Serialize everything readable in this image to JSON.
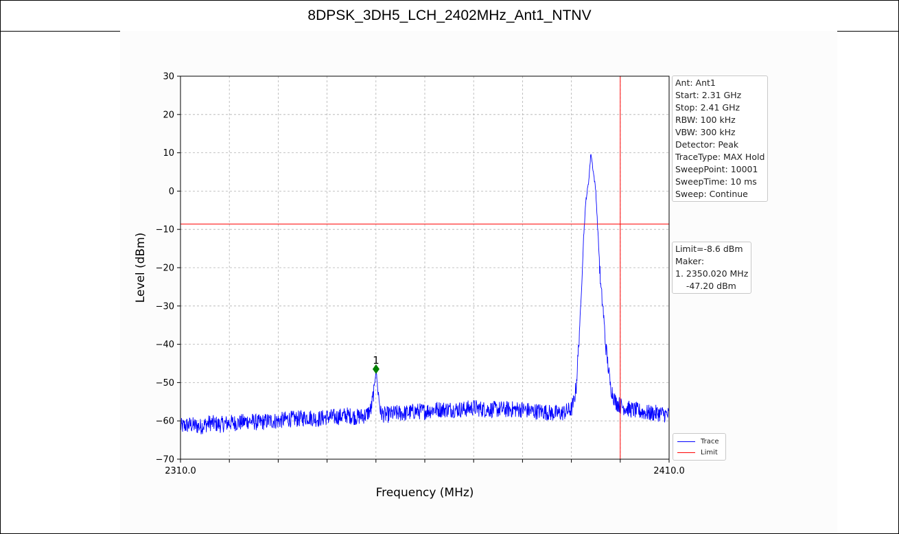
{
  "window": {
    "title": "8DPSK_3DH5_LCH_2402MHz_Ant1_NTNV"
  },
  "info_box": [
    "Ant: Ant1",
    "Start: 2.31 GHz",
    "Stop: 2.41 GHz",
    "RBW: 100 kHz",
    "VBW: 300 kHz",
    "Detector: Peak",
    "TraceType: MAX Hold",
    "SweepPoint: 10001",
    "SweepTime: 10 ms",
    "Sweep: Continue"
  ],
  "limit_box": [
    "Limit=-8.6 dBm",
    "Maker:",
    "1. 2350.020 MHz",
    "    -47.20 dBm"
  ],
  "colors": {
    "trace": "#0000ff",
    "limit": "#ff0000",
    "marker": "#008000"
  },
  "chart_data": {
    "type": "line",
    "title": "",
    "xlabel": "Frequency (MHz)",
    "ylabel": "Level (dBm)",
    "xlim": [
      2310.0,
      2410.0
    ],
    "ylim": [
      -70,
      30
    ],
    "x_tick_labels": [
      "2310.0",
      "2410.0"
    ],
    "y_ticks": [
      30,
      20,
      10,
      0,
      -10,
      -20,
      -30,
      -40,
      -50,
      -60,
      -70
    ],
    "grid": true,
    "legend_position": "bottom-right",
    "series": [
      {
        "name": "Trace",
        "x": [
          2310,
          2312,
          2314,
          2316,
          2318,
          2320,
          2322,
          2324,
          2326,
          2328,
          2330,
          2332,
          2334,
          2336,
          2338,
          2340,
          2342,
          2344,
          2346,
          2348,
          2349,
          2349.6,
          2350.02,
          2350.4,
          2351,
          2352,
          2354,
          2356,
          2358,
          2360,
          2362,
          2364,
          2366,
          2368,
          2370,
          2372,
          2374,
          2376,
          2378,
          2380,
          2382,
          2384,
          2386,
          2388,
          2389,
          2390,
          2390.5,
          2391,
          2391.5,
          2392,
          2392.5,
          2393,
          2393.5,
          2394,
          2395,
          2396,
          2396.5,
          2397,
          2398,
          2399,
          2400,
          2402,
          2404,
          2406,
          2408,
          2410
        ],
        "values": [
          -61.5,
          -61,
          -61.5,
          -60.5,
          -61,
          -60.5,
          -60.5,
          -60,
          -60.5,
          -60,
          -60,
          -59.5,
          -59.5,
          -59,
          -59.5,
          -59,
          -59,
          -58.5,
          -59,
          -58.5,
          -57,
          -52,
          -46.5,
          -52,
          -58,
          -58.5,
          -58,
          -58,
          -57.5,
          -57.5,
          -57,
          -57,
          -57,
          -57,
          -56.5,
          -57,
          -57,
          -57,
          -57,
          -57,
          -57.5,
          -57.5,
          -58,
          -58,
          -57.5,
          -57,
          -55,
          -51,
          -40,
          -28,
          -12,
          -2,
          2,
          10,
          0,
          -25,
          -31,
          -40,
          -51,
          -55,
          -56,
          -57,
          -57.5,
          -58,
          -58,
          -58.5
        ]
      },
      {
        "name": "Limit",
        "values": [
          -8.6
        ]
      }
    ],
    "markers": [
      {
        "label": "1",
        "x": 2350.02,
        "y": -47.2
      }
    ],
    "vertical_line": 2400.0,
    "limit": -8.6
  }
}
